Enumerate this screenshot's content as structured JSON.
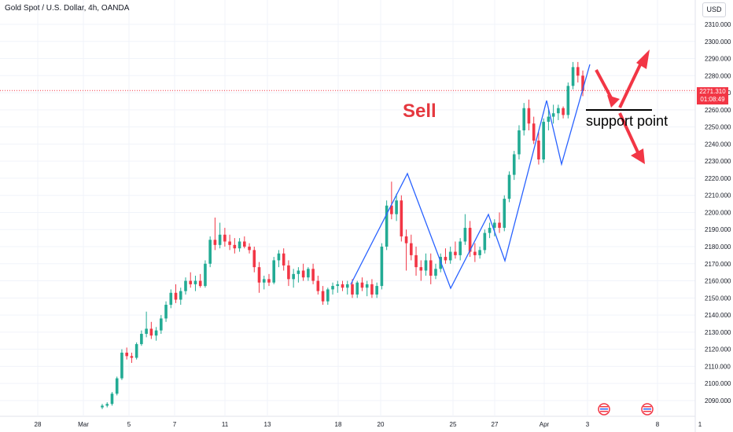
{
  "header": {
    "title": "Gold Spot / U.S. Dollar, 4h, OANDA",
    "currency_button": "USD"
  },
  "price_tag": {
    "price": "2271.310",
    "countdown": "01:08:49",
    "value": 2271.31
  },
  "annotations": {
    "sell_label": "Sell",
    "support_label": "support point",
    "support_level": 2260
  },
  "colors": {
    "up": "#22ab94",
    "down": "#f23645",
    "zigzag": "#2962ff",
    "arrow": "#f23645"
  },
  "chart_data": {
    "type": "candlestick",
    "y_axis": {
      "min": 2085,
      "max": 2320,
      "ticks": [
        2090,
        2100,
        2110,
        2120,
        2130,
        2140,
        2150,
        2160,
        2170,
        2180,
        2190,
        2200,
        2210,
        2220,
        2230,
        2240,
        2250,
        2260,
        2270,
        2280,
        2290,
        2300,
        2310
      ]
    },
    "x_axis": {
      "tick_labels": [
        "28",
        "Mar",
        "5",
        "7",
        "11",
        "13",
        "18",
        "20",
        "25",
        "27",
        "Apr",
        "3",
        "8",
        "1"
      ]
    },
    "grid": true,
    "candles_ohlc": [
      [
        2086,
        2088,
        2085,
        2087
      ],
      [
        2087,
        2089,
        2086,
        2088
      ],
      [
        2088,
        2095,
        2087,
        2094
      ],
      [
        2094,
        2104,
        2093,
        2103
      ],
      [
        2103,
        2120,
        2102,
        2118
      ],
      [
        2118,
        2121,
        2114,
        2116
      ],
      [
        2116,
        2118,
        2112,
        2115
      ],
      [
        2115,
        2124,
        2114,
        2123
      ],
      [
        2123,
        2131,
        2122,
        2129
      ],
      [
        2129,
        2142,
        2127,
        2132
      ],
      [
        2132,
        2136,
        2126,
        2128
      ],
      [
        2128,
        2133,
        2125,
        2131
      ],
      [
        2131,
        2140,
        2129,
        2138
      ],
      [
        2138,
        2148,
        2136,
        2146
      ],
      [
        2146,
        2155,
        2144,
        2153
      ],
      [
        2153,
        2158,
        2147,
        2149
      ],
      [
        2149,
        2156,
        2146,
        2154
      ],
      [
        2154,
        2162,
        2152,
        2160
      ],
      [
        2160,
        2165,
        2156,
        2158
      ],
      [
        2158,
        2163,
        2154,
        2160
      ],
      [
        2160,
        2164,
        2156,
        2157
      ],
      [
        2157,
        2172,
        2156,
        2170
      ],
      [
        2170,
        2186,
        2168,
        2184
      ],
      [
        2184,
        2197,
        2178,
        2181
      ],
      [
        2181,
        2194,
        2179,
        2187
      ],
      [
        2187,
        2191,
        2180,
        2183
      ],
      [
        2183,
        2187,
        2178,
        2181
      ],
      [
        2181,
        2185,
        2176,
        2179
      ],
      [
        2179,
        2185,
        2177,
        2183
      ],
      [
        2183,
        2186,
        2179,
        2180
      ],
      [
        2180,
        2182,
        2176,
        2178
      ],
      [
        2178,
        2180,
        2165,
        2168
      ],
      [
        2168,
        2171,
        2153,
        2159
      ],
      [
        2159,
        2163,
        2155,
        2161
      ],
      [
        2161,
        2164,
        2157,
        2159
      ],
      [
        2159,
        2174,
        2158,
        2172
      ],
      [
        2172,
        2178,
        2168,
        2176
      ],
      [
        2176,
        2179,
        2166,
        2169
      ],
      [
        2169,
        2172,
        2157,
        2161
      ],
      [
        2161,
        2167,
        2156,
        2164
      ],
      [
        2164,
        2168,
        2159,
        2166
      ],
      [
        2166,
        2170,
        2160,
        2162
      ],
      [
        2162,
        2168,
        2160,
        2167
      ],
      [
        2167,
        2170,
        2158,
        2160
      ],
      [
        2160,
        2163,
        2152,
        2154
      ],
      [
        2154,
        2157,
        2146,
        2148
      ],
      [
        2148,
        2156,
        2146,
        2155
      ],
      [
        2155,
        2159,
        2152,
        2157
      ],
      [
        2157,
        2160,
        2153,
        2158
      ],
      [
        2158,
        2160,
        2154,
        2156
      ],
      [
        2156,
        2160,
        2152,
        2158
      ],
      [
        2158,
        2161,
        2150,
        2152
      ],
      [
        2152,
        2160,
        2150,
        2159
      ],
      [
        2159,
        2162,
        2154,
        2156
      ],
      [
        2156,
        2160,
        2151,
        2158
      ],
      [
        2158,
        2161,
        2150,
        2152
      ],
      [
        2152,
        2159,
        2150,
        2157
      ],
      [
        2157,
        2182,
        2155,
        2180
      ],
      [
        2180,
        2207,
        2178,
        2204
      ],
      [
        2204,
        2218,
        2196,
        2199
      ],
      [
        2199,
        2211,
        2195,
        2207
      ],
      [
        2207,
        2210,
        2183,
        2186
      ],
      [
        2186,
        2190,
        2166,
        2182
      ],
      [
        2182,
        2187,
        2172,
        2175
      ],
      [
        2175,
        2180,
        2163,
        2168
      ],
      [
        2168,
        2172,
        2160,
        2166
      ],
      [
        2166,
        2176,
        2163,
        2172
      ],
      [
        2172,
        2176,
        2158,
        2163
      ],
      [
        2163,
        2170,
        2161,
        2167
      ],
      [
        2167,
        2176,
        2165,
        2174
      ],
      [
        2174,
        2179,
        2170,
        2172
      ],
      [
        2172,
        2180,
        2170,
        2177
      ],
      [
        2177,
        2183,
        2173,
        2175
      ],
      [
        2175,
        2185,
        2172,
        2183
      ],
      [
        2183,
        2199,
        2181,
        2191
      ],
      [
        2191,
        2195,
        2174,
        2177
      ],
      [
        2177,
        2182,
        2171,
        2175
      ],
      [
        2175,
        2180,
        2173,
        2178
      ],
      [
        2178,
        2190,
        2176,
        2188
      ],
      [
        2188,
        2194,
        2185,
        2191
      ],
      [
        2191,
        2196,
        2186,
        2194
      ],
      [
        2194,
        2200,
        2188,
        2191
      ],
      [
        2191,
        2210,
        2189,
        2208
      ],
      [
        2208,
        2224,
        2206,
        2222
      ],
      [
        2222,
        2236,
        2219,
        2234
      ],
      [
        2234,
        2251,
        2231,
        2248
      ],
      [
        2248,
        2264,
        2245,
        2261
      ],
      [
        2261,
        2266,
        2248,
        2252
      ],
      [
        2252,
        2256,
        2240,
        2242
      ],
      [
        2242,
        2247,
        2228,
        2231
      ],
      [
        2231,
        2255,
        2229,
        2253
      ],
      [
        2253,
        2260,
        2248,
        2256
      ],
      [
        2256,
        2263,
        2252,
        2258
      ],
      [
        2258,
        2263,
        2254,
        2261
      ],
      [
        2261,
        2262,
        2255,
        2257
      ],
      [
        2257,
        2276,
        2255,
        2274
      ],
      [
        2274,
        2288,
        2272,
        2285
      ],
      [
        2285,
        2288,
        2276,
        2280
      ],
      [
        2280,
        2283,
        2268,
        2271
      ]
    ]
  }
}
